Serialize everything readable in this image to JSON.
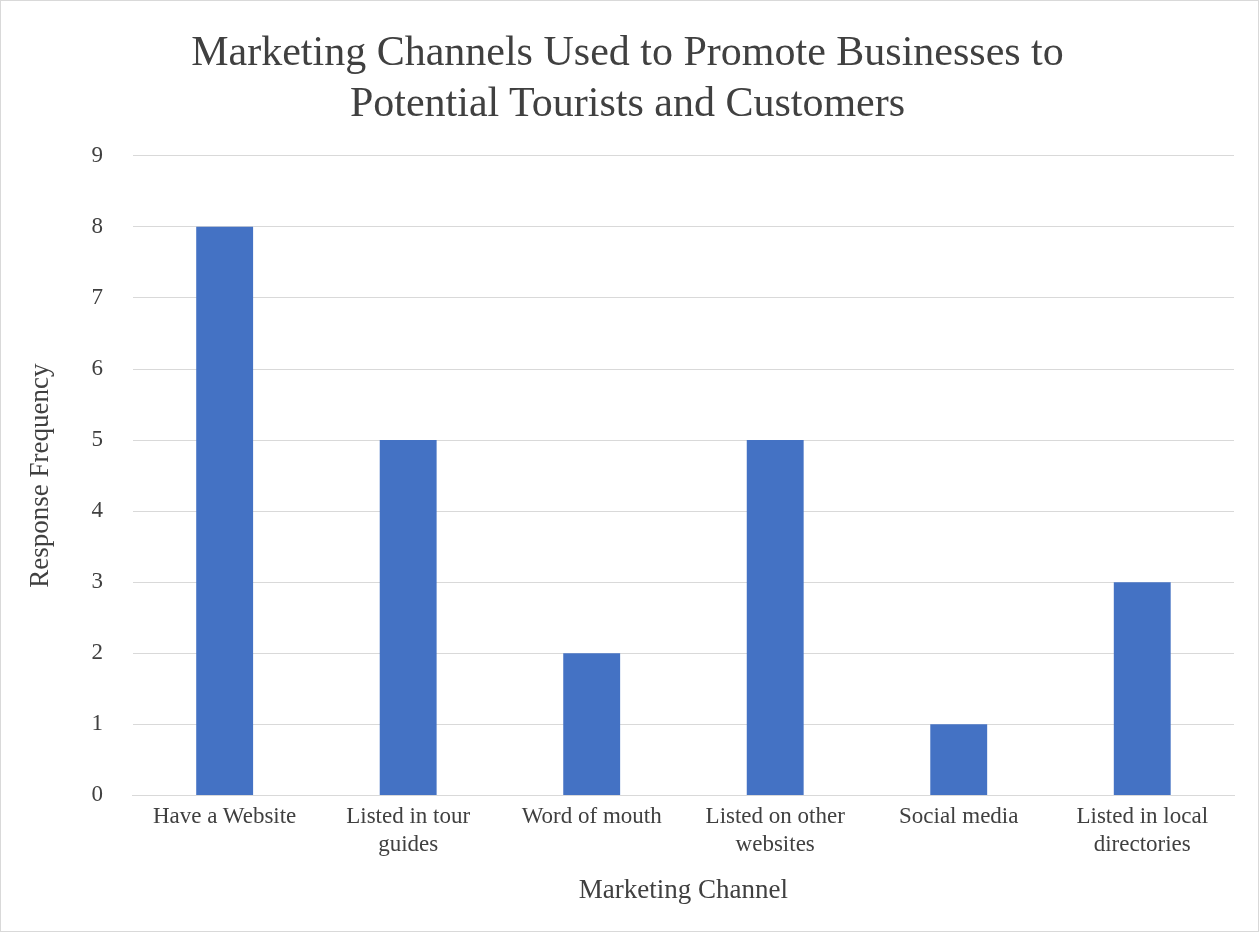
{
  "chart_data": {
    "type": "bar",
    "title": "Marketing Channels Used to Promote Businesses to Potential Tourists and Customers",
    "xlabel": "Marketing Channel",
    "ylabel": "Response Frequency",
    "categories": [
      "Have a Website",
      "Listed in tour guides",
      "Word of mouth",
      "Listed on other websites",
      "Social media",
      "Listed in local directories"
    ],
    "values": [
      8,
      5,
      2,
      5,
      1,
      3
    ],
    "color": "#4472c4",
    "ylim": [
      0,
      9
    ],
    "yticks": [
      0,
      1,
      2,
      3,
      4,
      5,
      6,
      7,
      8,
      9
    ],
    "grid": "y",
    "legend": false
  }
}
